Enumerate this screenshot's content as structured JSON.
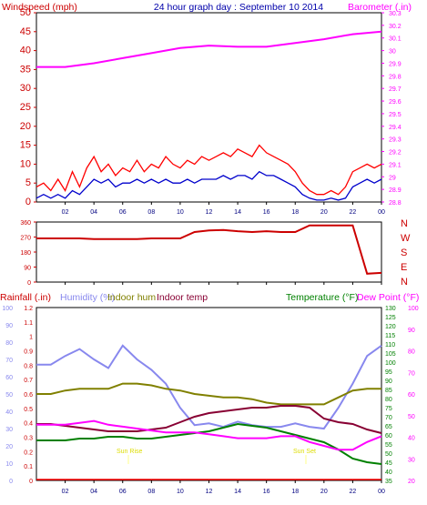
{
  "chart_data": [
    {
      "type": "line",
      "title": "24 hour graph day : September 10 2014",
      "left_axis_label": "Windspeed (mph)",
      "right_axis_label": "Barometer (.in)",
      "left_ticks": [
        "0",
        "5",
        "10",
        "15",
        "20",
        "25",
        "30",
        "35",
        "40",
        "45",
        "50"
      ],
      "right_ticks": [
        "28.8",
        "28.9",
        "29",
        "29.1",
        "29.2",
        "29.3",
        "29.4",
        "29.5",
        "29.6",
        "29.7",
        "29.8",
        "29.9",
        "30",
        "30.1",
        "30.2",
        "30.3"
      ],
      "left_ylim": [
        0,
        50
      ],
      "right_ylim": [
        28.8,
        30.3
      ],
      "x_ticks": [
        "02",
        "04",
        "06",
        "08",
        "10",
        "12",
        "14",
        "16",
        "18",
        "20",
        "22",
        "00"
      ],
      "x_hours": [
        0,
        24
      ],
      "series": [
        {
          "color": "#ff0000",
          "x": [
            0,
            0.5,
            1,
            1.5,
            2,
            2.5,
            3,
            3.5,
            4,
            4.5,
            5,
            5.5,
            6,
            6.5,
            7,
            7.5,
            8,
            8.5,
            9,
            9.5,
            10,
            10.5,
            11,
            11.5,
            12,
            12.5,
            13,
            13.5,
            14,
            14.5,
            15,
            15.5,
            16,
            16.5,
            17,
            17.5,
            18,
            18.5,
            19,
            19.5,
            20,
            20.5,
            21,
            21.5,
            22,
            22.5,
            23,
            23.5,
            24
          ],
          "values": [
            4,
            5,
            3,
            6,
            3,
            8,
            4,
            9,
            12,
            8,
            10,
            7,
            9,
            8,
            11,
            8,
            10,
            9,
            12,
            10,
            9,
            11,
            10,
            12,
            11,
            12,
            13,
            12,
            14,
            13,
            12,
            15,
            13,
            12,
            11,
            10,
            8,
            5,
            3,
            2,
            2,
            3,
            2,
            4,
            8,
            9,
            10,
            9,
            10
          ]
        },
        {
          "color": "#0000cc",
          "x": [
            0,
            0.5,
            1,
            1.5,
            2,
            2.5,
            3,
            3.5,
            4,
            4.5,
            5,
            5.5,
            6,
            6.5,
            7,
            7.5,
            8,
            8.5,
            9,
            9.5,
            10,
            10.5,
            11,
            11.5,
            12,
            12.5,
            13,
            13.5,
            14,
            14.5,
            15,
            15.5,
            16,
            16.5,
            17,
            17.5,
            18,
            18.5,
            19,
            19.5,
            20,
            20.5,
            21,
            21.5,
            22,
            22.5,
            23,
            23.5,
            24
          ],
          "values": [
            1,
            2,
            1,
            2,
            1,
            3,
            2,
            4,
            6,
            5,
            6,
            4,
            5,
            5,
            6,
            5,
            6,
            5,
            6,
            5,
            5,
            6,
            5,
            6,
            6,
            6,
            7,
            6,
            7,
            7,
            6,
            8,
            7,
            7,
            6,
            5,
            4,
            2,
            1,
            0.5,
            0.5,
            1,
            0.5,
            1,
            4,
            5,
            6,
            5,
            6
          ]
        },
        {
          "color": "#ff00ff",
          "x": [
            0,
            2,
            4,
            6,
            8,
            10,
            12,
            14,
            16,
            18,
            20,
            22,
            24
          ],
          "values": [
            29.87,
            29.87,
            29.9,
            29.94,
            29.98,
            30.02,
            30.04,
            30.03,
            30.03,
            30.06,
            30.09,
            30.13,
            30.15
          ]
        }
      ]
    },
    {
      "type": "line",
      "left_ticks": [
        "0",
        "90",
        "180",
        "270",
        "360"
      ],
      "right_letters": [
        "N",
        "W",
        "S",
        "E",
        "N"
      ],
      "ylim": [
        0,
        360
      ],
      "x_ticks": [
        "02",
        "04",
        "06",
        "08",
        "10",
        "12",
        "14",
        "16",
        "18",
        "20",
        "22",
        "00"
      ],
      "series": [
        {
          "color": "#cc0000",
          "x": [
            0,
            1,
            2,
            3,
            4,
            5,
            6,
            7,
            8,
            9,
            10,
            11,
            12,
            13,
            14,
            15,
            16,
            17,
            18,
            19,
            20,
            21,
            22,
            23,
            24
          ],
          "values": [
            262,
            262,
            262,
            262,
            258,
            258,
            258,
            258,
            262,
            262,
            262,
            300,
            310,
            312,
            305,
            300,
            305,
            300,
            300,
            340,
            340,
            340,
            340,
            50,
            55
          ]
        }
      ]
    },
    {
      "type": "line",
      "left_axis_label_1": "Rainfall (.in)",
      "left_axis_label_2": "Humidity (%)",
      "left_axis_label_3": "Indoor hum",
      "left_axis_label_4": "Indoor temp",
      "right_axis_label_1": "Temperature (°F)",
      "right_axis_label_2": "Dew Point (°F)",
      "rain_ticks": [
        "0",
        "0.1",
        "0.2",
        "0.3",
        "0.4",
        "0.5",
        "0.6",
        "0.7",
        "0.8",
        "0.9",
        "1",
        "1.1",
        "1.2"
      ],
      "hum_ticks": [
        "0",
        "10",
        "20",
        "30",
        "40",
        "50",
        "60",
        "70",
        "80",
        "90",
        "100"
      ],
      "temp_ticks": [
        "35",
        "40",
        "45",
        "50",
        "55",
        "60",
        "65",
        "70",
        "75",
        "80",
        "85",
        "90",
        "95",
        "100",
        "105",
        "110",
        "115",
        "120",
        "125",
        "130"
      ],
      "dew_ticks": [
        "20",
        "30",
        "40",
        "50",
        "60",
        "70",
        "80",
        "90",
        "100"
      ],
      "x_ticks": [
        "02",
        "04",
        "06",
        "08",
        "10",
        "12",
        "14",
        "16",
        "18",
        "20",
        "22",
        "00"
      ],
      "annotations": [
        "Sun Rise",
        "Sun Set"
      ],
      "series": [
        {
          "name": "Humidity (%)",
          "color": "#8888ee",
          "x": [
            0,
            1,
            2,
            3,
            4,
            5,
            6,
            7,
            8,
            9,
            10,
            11,
            12,
            13,
            14,
            15,
            16,
            17,
            18,
            19,
            20,
            21,
            22,
            23,
            24
          ],
          "values": [
            67,
            67,
            72,
            76,
            70,
            65,
            78,
            70,
            64,
            56,
            42,
            32,
            33,
            31,
            34,
            32,
            31,
            31,
            33,
            31,
            30,
            42,
            56,
            72,
            78
          ]
        },
        {
          "name": "Indoor hum",
          "color": "#808000",
          "x": [
            0,
            1,
            2,
            3,
            4,
            5,
            6,
            7,
            8,
            9,
            10,
            11,
            12,
            13,
            14,
            15,
            16,
            17,
            18,
            19,
            20,
            21,
            22,
            23,
            24
          ],
          "values": [
            50,
            50,
            52,
            53,
            53,
            53,
            56,
            56,
            55,
            53,
            52,
            50,
            49,
            48,
            48,
            47,
            45,
            44,
            44,
            44,
            44,
            48,
            52,
            53,
            53
          ]
        },
        {
          "name": "Indoor temp",
          "color": "#880033",
          "x": [
            0,
            1,
            2,
            3,
            4,
            5,
            6,
            7,
            8,
            9,
            10,
            11,
            12,
            13,
            14,
            15,
            16,
            17,
            18,
            19,
            20,
            21,
            22,
            23,
            24
          ],
          "values": [
            66,
            66,
            65,
            64,
            63,
            62,
            62,
            62,
            63,
            64,
            67,
            70,
            72,
            73,
            74,
            75,
            75,
            76,
            76,
            75,
            69,
            67,
            66,
            63,
            61
          ]
        },
        {
          "name": "Temperature (°F)",
          "color": "#008000",
          "x": [
            0,
            1,
            2,
            3,
            4,
            5,
            6,
            7,
            8,
            9,
            10,
            11,
            12,
            13,
            14,
            15,
            16,
            17,
            18,
            19,
            20,
            21,
            22,
            23,
            24
          ],
          "values": [
            57,
            57,
            57,
            58,
            58,
            59,
            59,
            58,
            58,
            59,
            60,
            61,
            62,
            64,
            66,
            65,
            64,
            62,
            60,
            58,
            56,
            52,
            47,
            45,
            44
          ]
        },
        {
          "name": "Dew Point (°F)",
          "color": "#ff00ff",
          "x": [
            0,
            1,
            2,
            3,
            4,
            5,
            6,
            7,
            8,
            9,
            10,
            11,
            12,
            13,
            14,
            15,
            16,
            17,
            18,
            19,
            20,
            21,
            22,
            23,
            24
          ],
          "values": [
            44,
            44,
            44,
            45,
            46,
            44,
            43,
            42,
            41,
            40,
            40,
            40,
            39,
            38,
            37,
            37,
            37,
            38,
            38,
            35,
            33,
            31,
            31,
            35,
            38
          ]
        }
      ]
    }
  ]
}
